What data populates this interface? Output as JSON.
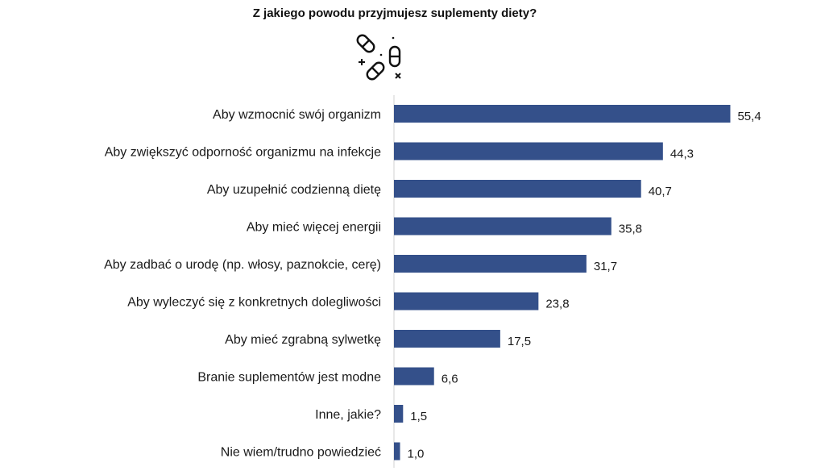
{
  "chart_data": {
    "type": "bar",
    "orientation": "horizontal",
    "title": "Z jakiego powodu przyjmujesz suplementy diety?",
    "categories": [
      "Aby wzmocnić swój organizm",
      "Aby zwiększyć odporność organizmu na infekcje",
      "Aby uzupełnić codzienną dietę",
      "Aby mieć więcej energii",
      "Aby zadbać o urodę (np. włosy, paznokcie, cerę)",
      "Aby wyleczyć się z konkretnych dolegliwości",
      "Aby mieć zgrabną sylwetkę",
      "Branie suplementów jest modne",
      "Inne, jakie?",
      "Nie wiem/trudno powiedzieć"
    ],
    "values": [
      55.4,
      44.3,
      40.7,
      35.8,
      31.7,
      23.8,
      17.5,
      6.6,
      1.5,
      1.0
    ],
    "value_labels": [
      "55,4",
      "44,3",
      "40,7",
      "35,8",
      "31,7",
      "23,8",
      "17,5",
      "6,6",
      "1,5",
      "1,0"
    ],
    "xlim": [
      0,
      56
    ],
    "grid": false,
    "legend": "none",
    "bar_color": "#34508a",
    "axis_color": "#d0d0d0"
  },
  "icon": "pills-icon"
}
